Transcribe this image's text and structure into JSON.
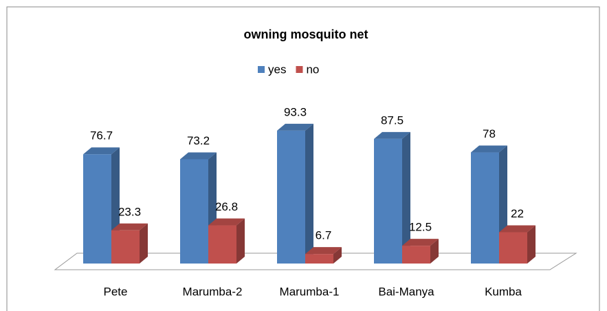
{
  "chart_data": {
    "type": "bar3d",
    "title": "owning mosquito net",
    "categories": [
      "Pete",
      "Marumba-2",
      "Marumba-1",
      "Bai-Manya",
      "Kumba"
    ],
    "series": [
      {
        "name": "yes",
        "color": "#4f81bd",
        "values": [
          76.7,
          73.2,
          93.3,
          87.5,
          78
        ]
      },
      {
        "name": "no",
        "color": "#c0504d",
        "values": [
          23.3,
          26.8,
          6.7,
          12.5,
          22
        ]
      }
    ],
    "legend": "top"
  }
}
